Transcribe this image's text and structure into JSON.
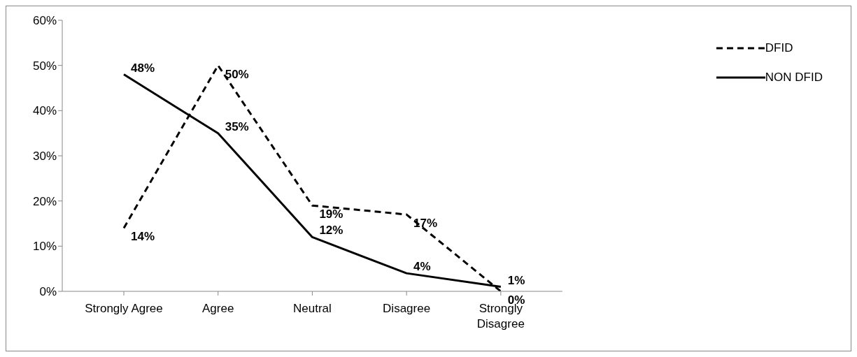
{
  "chart_data": {
    "type": "line",
    "categories": [
      "Strongly Agree",
      "Agree",
      "Neutral",
      "Disagree",
      "Strongly Disagree"
    ],
    "series": [
      {
        "name": "DFID",
        "color": "#000000",
        "line_style": "dashed",
        "values": [
          14,
          50,
          19,
          17,
          0
        ],
        "value_labels": [
          "14%",
          "50%",
          "19%",
          "17%",
          "0%"
        ]
      },
      {
        "name": "NON DFID",
        "color": "#000000",
        "line_style": "solid",
        "values": [
          48,
          35,
          12,
          4,
          1
        ],
        "value_labels": [
          "48%",
          "35%",
          "12%",
          "4%",
          "1%"
        ]
      }
    ],
    "ylim": [
      0,
      60
    ],
    "yticks": [
      {
        "value": 0,
        "label": "0%"
      },
      {
        "value": 10,
        "label": "10%"
      },
      {
        "value": 20,
        "label": "20%"
      },
      {
        "value": 30,
        "label": "30%"
      },
      {
        "value": 40,
        "label": "40%"
      },
      {
        "value": 50,
        "label": "50%"
      },
      {
        "value": 60,
        "label": "60%"
      }
    ],
    "grid": false,
    "legend": "top right",
    "marker": "none"
  }
}
